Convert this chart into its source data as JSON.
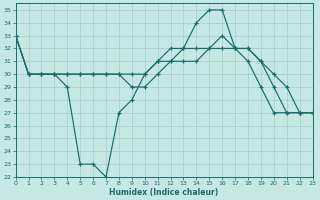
{
  "xlabel": "Humidex (Indice chaleur)",
  "background_color": "#c5e8e4",
  "grid_color": "#a8cccc",
  "line_color": "#1a6b6b",
  "xlim": [
    0,
    23
  ],
  "ylim": [
    22,
    35.5
  ],
  "xticks": [
    0,
    1,
    2,
    3,
    4,
    5,
    6,
    7,
    8,
    9,
    10,
    11,
    12,
    13,
    14,
    15,
    16,
    17,
    18,
    19,
    20,
    21,
    22,
    23
  ],
  "yticks": [
    22,
    23,
    24,
    25,
    26,
    27,
    28,
    29,
    30,
    31,
    32,
    33,
    34,
    35
  ],
  "line1_x": [
    0,
    1,
    2,
    3,
    4,
    5,
    6,
    7,
    8,
    9,
    10,
    11,
    12,
    13,
    14,
    15,
    16,
    17,
    18,
    19,
    20,
    21,
    22,
    23
  ],
  "line1_y": [
    33,
    30,
    30,
    30,
    29,
    23,
    23,
    22,
    27,
    28,
    30,
    31,
    32,
    32,
    34,
    35,
    35,
    32,
    31,
    29,
    27,
    27,
    27,
    27
  ],
  "line2_x": [
    0,
    1,
    2,
    3,
    4,
    5,
    6,
    7,
    8,
    9,
    10,
    11,
    12,
    13,
    14,
    15,
    16,
    17,
    18,
    19,
    20,
    21,
    22,
    23
  ],
  "line2_y": [
    33,
    30,
    30,
    30,
    30,
    30,
    30,
    30,
    30,
    30,
    30,
    31,
    31,
    32,
    32,
    32,
    32,
    32,
    32,
    31,
    29,
    27,
    27,
    27
  ],
  "line3_x": [
    0,
    1,
    2,
    3,
    4,
    5,
    6,
    7,
    8,
    9,
    10,
    11,
    12,
    13,
    14,
    15,
    16,
    17,
    18,
    19,
    20,
    21,
    22,
    23
  ],
  "line3_y": [
    33,
    30,
    30,
    30,
    30,
    30,
    30,
    30,
    30,
    29,
    29,
    30,
    31,
    31,
    31,
    32,
    33,
    32,
    32,
    31,
    30,
    29,
    27,
    27
  ]
}
